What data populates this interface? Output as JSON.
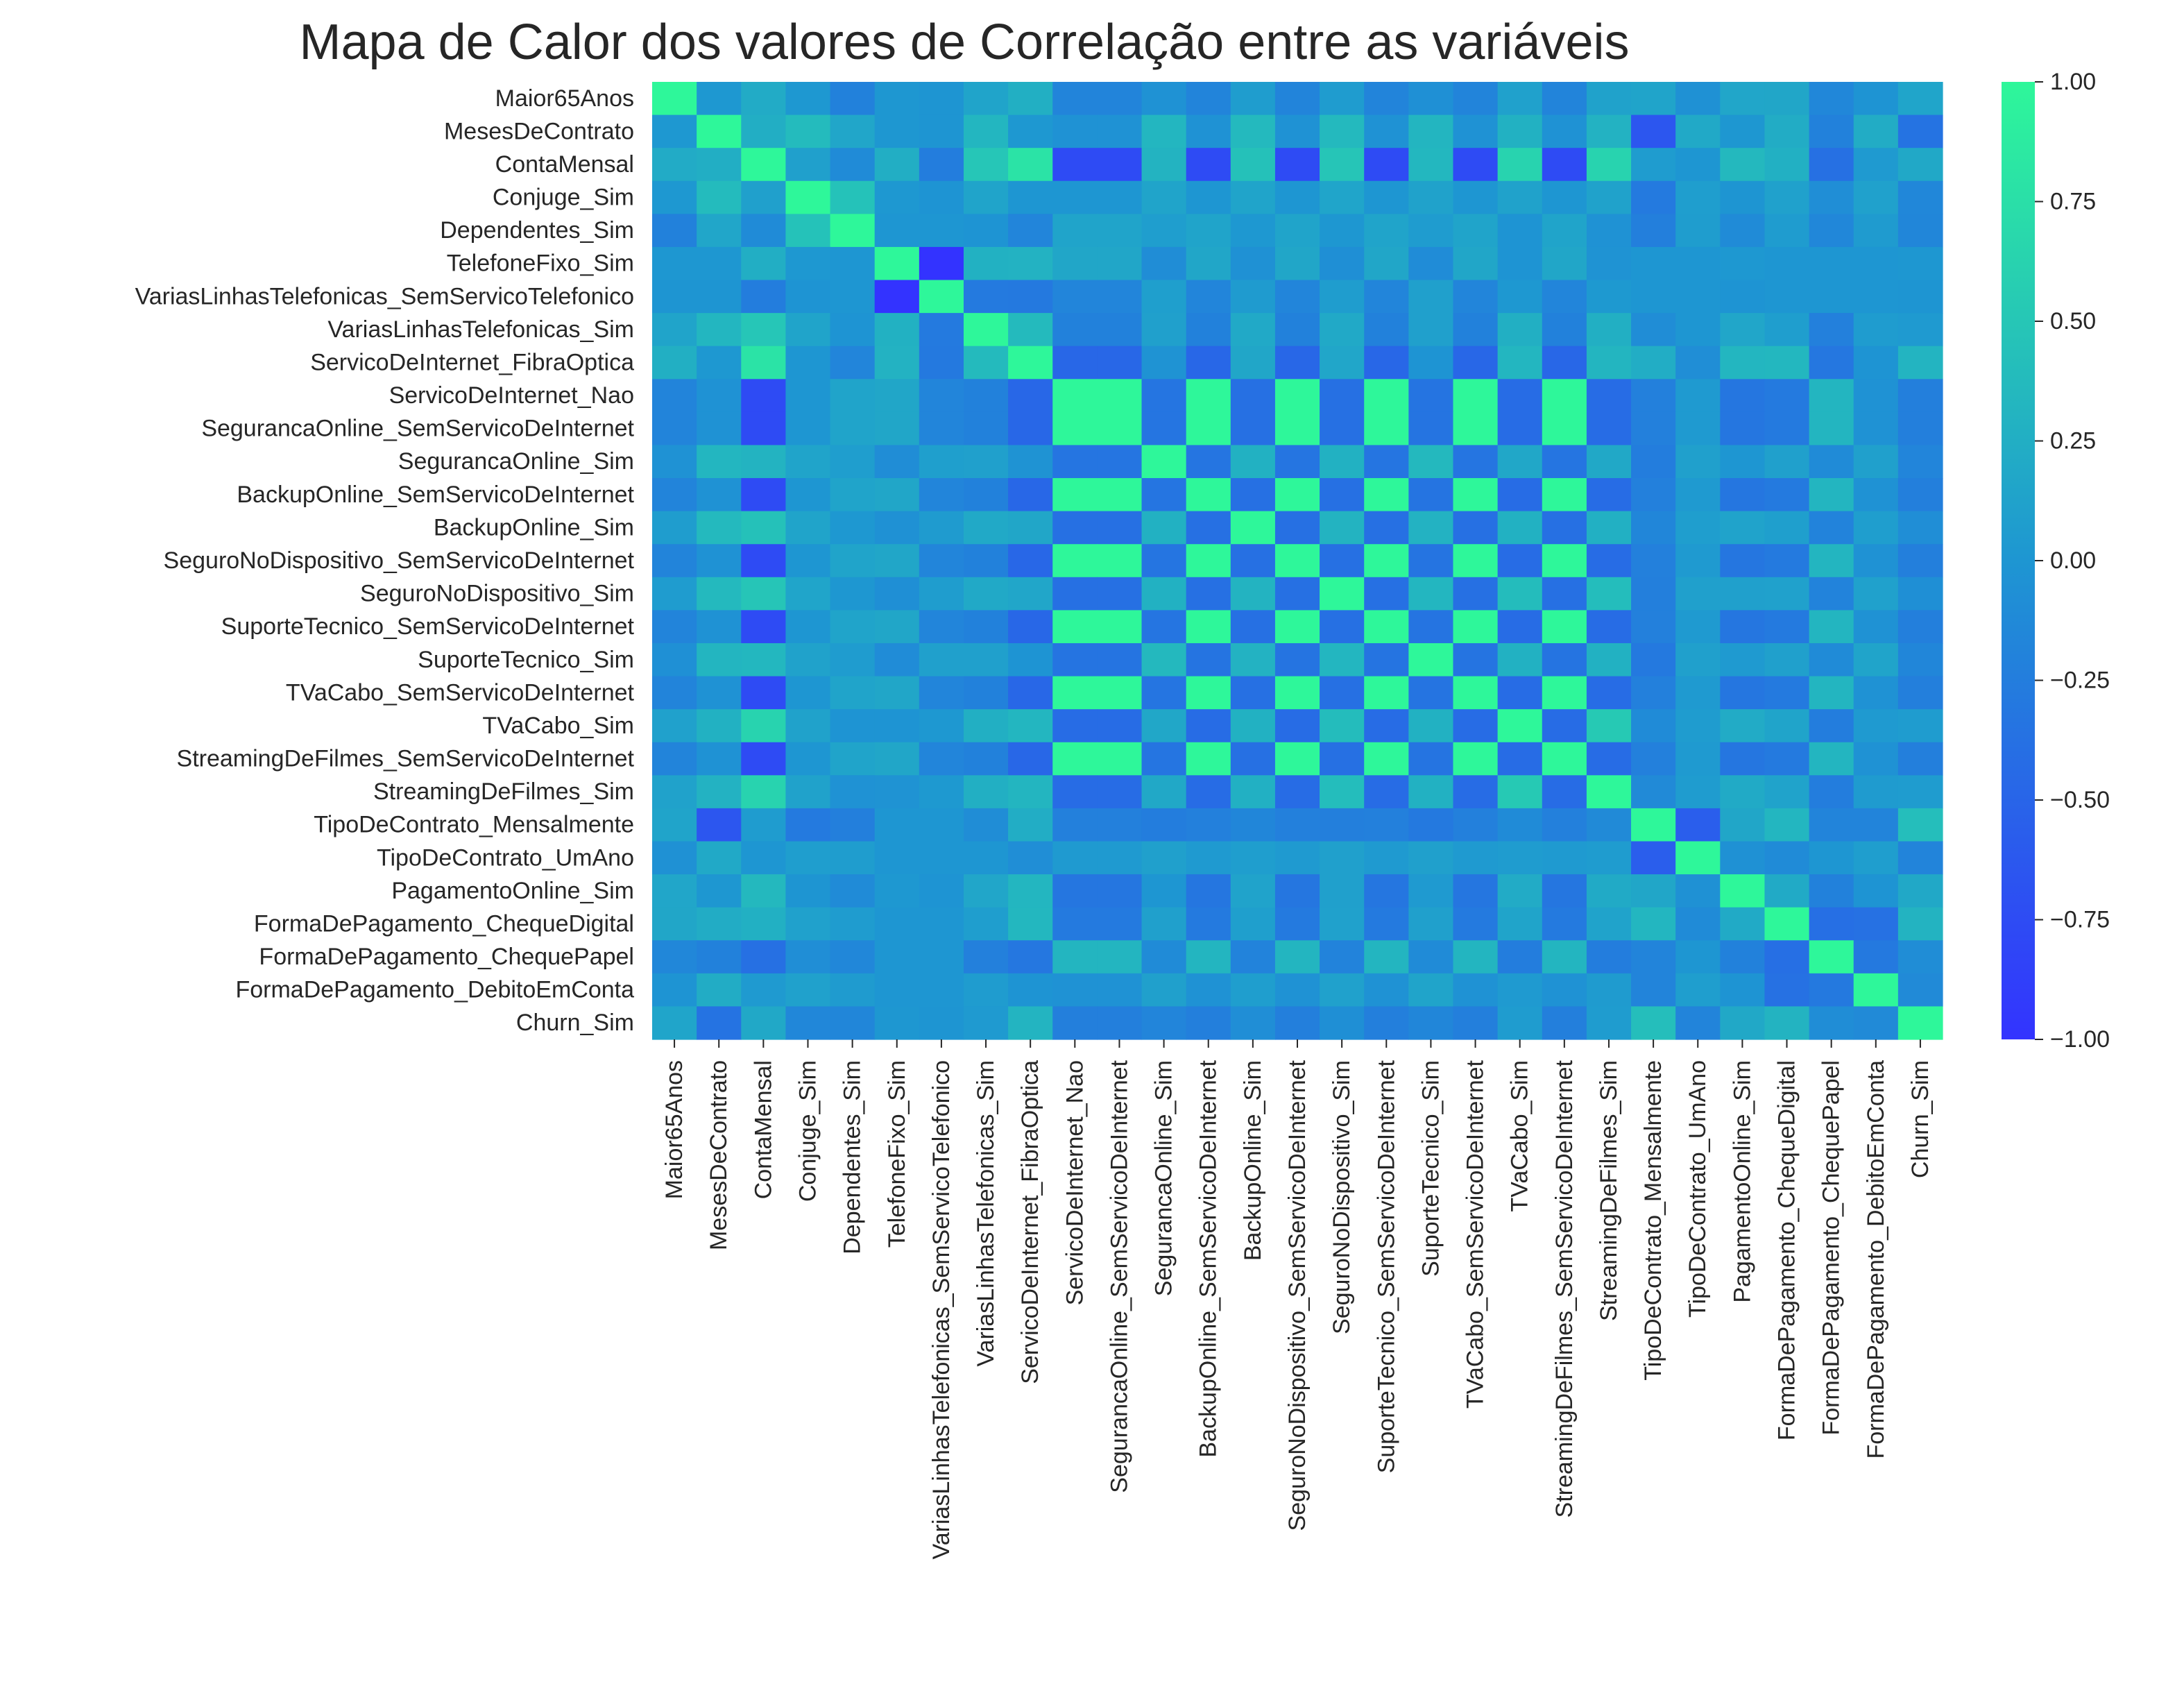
{
  "chart_data": {
    "type": "heatmap",
    "title": "Mapa de Calor dos valores de Correlação entre as variáveis",
    "xlabel": "",
    "ylabel": "",
    "labels": [
      "Maior65Anos",
      "MesesDeContrato",
      "ContaMensal",
      "Conjuge_Sim",
      "Dependentes_Sim",
      "TelefoneFixo_Sim",
      "VariasLinhasTelefonicas_SemServicoTelefonico",
      "VariasLinhasTelefonicas_Sim",
      "ServicoDeInternet_FibraOptica",
      "ServicoDeInternet_Nao",
      "SegurancaOnline_SemServicoDeInternet",
      "SegurancaOnline_Sim",
      "BackupOnline_SemServicoDeInternet",
      "BackupOnline_Sim",
      "SeguroNoDispositivo_SemServicoDeInternet",
      "SeguroNoDispositivo_Sim",
      "SuporteTecnico_SemServicoDeInternet",
      "SuporteTecnico_Sim",
      "TVaCabo_SemServicoDeInternet",
      "TVaCabo_Sim",
      "StreamingDeFilmes_SemServicoDeInternet",
      "StreamingDeFilmes_Sim",
      "TipoDeContrato_Mensalmente",
      "TipoDeContrato_UmAno",
      "PagamentoOnline_Sim",
      "FormaDePagamento_ChequeDigital",
      "FormaDePagamento_ChequePapel",
      "FormaDePagamento_DebitoEmConta",
      "Churn_Sim"
    ],
    "matrix": [
      [
        1.0,
        0.02,
        0.22,
        0.02,
        -0.21,
        0.01,
        -0.01,
        0.14,
        0.26,
        -0.18,
        -0.18,
        -0.04,
        -0.18,
        0.07,
        -0.18,
        0.06,
        -0.18,
        -0.06,
        -0.18,
        0.11,
        -0.18,
        0.12,
        0.14,
        -0.05,
        0.16,
        0.17,
        -0.15,
        -0.02,
        0.15
      ],
      [
        0.02,
        1.0,
        0.25,
        0.38,
        0.16,
        0.01,
        -0.01,
        0.33,
        0.02,
        -0.04,
        -0.04,
        0.33,
        -0.04,
        0.36,
        -0.04,
        0.36,
        -0.04,
        0.32,
        -0.04,
        0.28,
        -0.04,
        0.29,
        -0.65,
        0.2,
        0.01,
        0.23,
        -0.21,
        0.23,
        -0.35
      ],
      [
        0.22,
        0.25,
        1.0,
        0.1,
        -0.11,
        0.25,
        -0.25,
        0.49,
        0.79,
        -0.76,
        -0.76,
        0.3,
        -0.76,
        0.44,
        -0.76,
        0.48,
        -0.76,
        0.34,
        -0.76,
        0.63,
        -0.76,
        0.63,
        0.06,
        0.0,
        0.35,
        0.27,
        -0.38,
        0.04,
        0.19
      ],
      [
        0.02,
        0.38,
        0.1,
        1.0,
        0.45,
        0.02,
        -0.02,
        0.14,
        0.0,
        0.0,
        0.0,
        0.14,
        0.0,
        0.14,
        0.0,
        0.15,
        0.0,
        0.12,
        0.0,
        0.12,
        0.0,
        0.12,
        -0.28,
        0.08,
        -0.01,
        0.11,
        -0.08,
        0.11,
        -0.15
      ],
      [
        -0.21,
        0.16,
        -0.11,
        0.45,
        1.0,
        -0.0,
        0.0,
        -0.02,
        -0.17,
        0.14,
        0.14,
        0.08,
        0.14,
        0.02,
        0.14,
        0.01,
        0.14,
        0.06,
        0.14,
        -0.02,
        0.14,
        -0.04,
        -0.23,
        0.07,
        -0.11,
        0.06,
        -0.15,
        0.05,
        -0.16
      ],
      [
        0.01,
        0.01,
        0.25,
        0.02,
        -0.0,
        1.0,
        -1.0,
        0.28,
        0.29,
        0.17,
        0.17,
        -0.09,
        0.17,
        -0.05,
        0.17,
        -0.07,
        0.17,
        -0.1,
        0.17,
        -0.02,
        0.17,
        -0.03,
        0.0,
        -0.0,
        0.02,
        0.0,
        -0.0,
        0.0,
        0.01
      ],
      [
        -0.01,
        -0.01,
        -0.25,
        -0.02,
        0.0,
        -1.0,
        1.0,
        -0.28,
        -0.29,
        -0.17,
        -0.17,
        0.09,
        -0.17,
        0.05,
        -0.17,
        0.07,
        -0.17,
        0.1,
        -0.17,
        0.02,
        -0.17,
        0.03,
        -0.0,
        0.0,
        -0.02,
        -0.0,
        0.0,
        -0.0,
        -0.01
      ],
      [
        0.14,
        0.33,
        0.49,
        0.14,
        -0.02,
        0.28,
        -0.28,
        1.0,
        0.37,
        -0.21,
        -0.21,
        0.1,
        -0.21,
        0.2,
        -0.21,
        0.2,
        -0.21,
        0.1,
        -0.21,
        0.26,
        -0.21,
        0.26,
        -0.09,
        -0.0,
        0.16,
        0.08,
        -0.22,
        0.06,
        0.04
      ],
      [
        0.26,
        0.02,
        0.79,
        0.0,
        -0.17,
        0.29,
        -0.29,
        0.37,
        1.0,
        -0.47,
        -0.47,
        -0.03,
        -0.47,
        0.17,
        -0.47,
        0.16,
        -0.47,
        -0.02,
        -0.47,
        0.33,
        -0.47,
        0.32,
        0.24,
        -0.08,
        0.33,
        0.34,
        -0.31,
        -0.02,
        0.31
      ],
      [
        -0.18,
        -0.04,
        -0.76,
        0.0,
        0.14,
        0.17,
        -0.17,
        -0.21,
        -0.47,
        1.0,
        1.0,
        -0.33,
        1.0,
        -0.38,
        1.0,
        -0.38,
        1.0,
        -0.34,
        1.0,
        -0.42,
        1.0,
        -0.42,
        -0.22,
        0.04,
        -0.32,
        -0.28,
        0.32,
        -0.04,
        -0.23
      ],
      [
        -0.18,
        -0.04,
        -0.76,
        0.0,
        0.14,
        0.17,
        -0.17,
        -0.21,
        -0.47,
        1.0,
        1.0,
        -0.33,
        1.0,
        -0.38,
        1.0,
        -0.38,
        1.0,
        -0.34,
        1.0,
        -0.42,
        1.0,
        -0.42,
        -0.22,
        0.04,
        -0.32,
        -0.28,
        0.32,
        -0.04,
        -0.23
      ],
      [
        -0.04,
        0.33,
        0.3,
        0.14,
        0.08,
        -0.09,
        0.09,
        0.1,
        -0.03,
        -0.33,
        -0.33,
        1.0,
        -0.33,
        0.28,
        -0.33,
        0.28,
        -0.33,
        0.35,
        -0.33,
        0.18,
        -0.33,
        0.19,
        -0.25,
        0.1,
        -0.0,
        0.1,
        -0.11,
        0.1,
        -0.17
      ],
      [
        -0.18,
        -0.04,
        -0.76,
        0.0,
        0.14,
        0.17,
        -0.17,
        -0.21,
        -0.47,
        1.0,
        1.0,
        -0.33,
        1.0,
        -0.38,
        1.0,
        -0.38,
        1.0,
        -0.34,
        1.0,
        -0.42,
        1.0,
        -0.42,
        -0.22,
        0.04,
        -0.32,
        -0.28,
        0.32,
        -0.04,
        -0.23
      ],
      [
        0.07,
        0.36,
        0.44,
        0.14,
        0.02,
        -0.05,
        0.05,
        0.2,
        0.17,
        -0.38,
        -0.38,
        0.28,
        -0.38,
        1.0,
        -0.38,
        0.3,
        -0.38,
        0.29,
        -0.38,
        0.28,
        -0.38,
        0.27,
        -0.16,
        0.08,
        0.13,
        0.09,
        -0.19,
        0.08,
        -0.08
      ],
      [
        -0.18,
        -0.04,
        -0.76,
        0.0,
        0.14,
        0.17,
        -0.17,
        -0.21,
        -0.47,
        1.0,
        1.0,
        -0.33,
        1.0,
        -0.38,
        1.0,
        -0.38,
        1.0,
        -0.34,
        1.0,
        -0.42,
        1.0,
        -0.42,
        -0.22,
        0.04,
        -0.32,
        -0.28,
        0.32,
        -0.04,
        -0.23
      ],
      [
        0.06,
        0.36,
        0.48,
        0.15,
        0.01,
        -0.07,
        0.07,
        0.2,
        0.16,
        -0.38,
        -0.38,
        0.28,
        -0.38,
        0.3,
        -0.38,
        1.0,
        -0.38,
        0.33,
        -0.38,
        0.39,
        -0.38,
        0.4,
        -0.23,
        0.1,
        0.1,
        0.11,
        -0.19,
        0.11,
        -0.07
      ],
      [
        -0.18,
        -0.04,
        -0.76,
        0.0,
        0.14,
        0.17,
        -0.17,
        -0.21,
        -0.47,
        1.0,
        1.0,
        -0.33,
        1.0,
        -0.38,
        1.0,
        -0.38,
        1.0,
        -0.34,
        1.0,
        -0.42,
        1.0,
        -0.42,
        -0.22,
        0.04,
        -0.32,
        -0.28,
        0.32,
        -0.04,
        -0.23
      ],
      [
        -0.06,
        0.32,
        0.34,
        0.12,
        0.06,
        -0.1,
        0.1,
        0.1,
        -0.02,
        -0.34,
        -0.34,
        0.35,
        -0.34,
        0.29,
        -0.34,
        0.33,
        -0.34,
        1.0,
        -0.34,
        0.28,
        -0.34,
        0.28,
        -0.29,
        0.1,
        0.04,
        0.1,
        -0.11,
        0.14,
        -0.16
      ],
      [
        -0.18,
        -0.04,
        -0.76,
        0.0,
        0.14,
        0.17,
        -0.17,
        -0.21,
        -0.47,
        1.0,
        1.0,
        -0.33,
        1.0,
        -0.38,
        1.0,
        -0.38,
        1.0,
        -0.34,
        1.0,
        -0.42,
        1.0,
        -0.42,
        -0.22,
        0.04,
        -0.32,
        -0.28,
        0.32,
        -0.04,
        -0.23
      ],
      [
        0.11,
        0.28,
        0.63,
        0.12,
        -0.02,
        -0.02,
        0.02,
        0.26,
        0.33,
        -0.42,
        -0.42,
        0.18,
        -0.42,
        0.28,
        -0.42,
        0.39,
        -0.42,
        0.28,
        -0.42,
        1.0,
        -0.42,
        0.53,
        -0.11,
        0.06,
        0.22,
        0.14,
        -0.25,
        0.04,
        0.06
      ],
      [
        -0.18,
        -0.04,
        -0.76,
        0.0,
        0.14,
        0.17,
        -0.17,
        -0.21,
        -0.47,
        1.0,
        1.0,
        -0.33,
        1.0,
        -0.38,
        1.0,
        -0.38,
        1.0,
        -0.34,
        1.0,
        -0.42,
        1.0,
        -0.42,
        -0.22,
        0.04,
        -0.32,
        -0.28,
        0.32,
        -0.04,
        -0.23
      ],
      [
        0.12,
        0.29,
        0.63,
        0.12,
        -0.04,
        -0.03,
        0.03,
        0.26,
        0.32,
        -0.42,
        -0.42,
        0.19,
        -0.42,
        0.27,
        -0.42,
        0.4,
        -0.42,
        0.28,
        -0.42,
        0.53,
        -0.42,
        1.0,
        -0.12,
        0.06,
        0.21,
        0.13,
        -0.25,
        0.05,
        0.06
      ],
      [
        0.14,
        -0.65,
        0.06,
        -0.28,
        -0.23,
        0.0,
        -0.0,
        -0.09,
        0.24,
        -0.22,
        -0.22,
        -0.25,
        -0.22,
        -0.16,
        -0.22,
        -0.23,
        -0.22,
        -0.29,
        -0.22,
        -0.11,
        -0.22,
        -0.12,
        1.0,
        -0.57,
        0.17,
        0.33,
        -0.18,
        -0.18,
        0.41
      ],
      [
        -0.05,
        0.2,
        0.0,
        0.08,
        0.07,
        -0.0,
        0.0,
        -0.0,
        -0.08,
        0.04,
        0.04,
        0.1,
        0.04,
        0.08,
        0.04,
        0.1,
        0.04,
        0.1,
        0.04,
        0.06,
        0.04,
        0.06,
        -0.57,
        1.0,
        -0.05,
        -0.11,
        0.0,
        0.08,
        -0.18
      ],
      [
        0.16,
        0.01,
        0.35,
        -0.01,
        -0.11,
        0.02,
        -0.02,
        0.16,
        0.33,
        -0.32,
        -0.32,
        -0.0,
        -0.32,
        0.13,
        -0.32,
        0.1,
        -0.32,
        0.04,
        -0.32,
        0.22,
        -0.32,
        0.21,
        0.17,
        -0.05,
        1.0,
        0.21,
        -0.21,
        -0.02,
        0.19
      ],
      [
        0.17,
        0.23,
        0.27,
        0.11,
        0.06,
        0.0,
        -0.0,
        0.08,
        0.34,
        -0.28,
        -0.28,
        0.1,
        -0.28,
        0.09,
        -0.28,
        0.11,
        -0.28,
        0.1,
        -0.28,
        0.14,
        -0.28,
        0.13,
        0.33,
        -0.11,
        0.21,
        1.0,
        -0.39,
        -0.37,
        0.3
      ],
      [
        -0.15,
        -0.21,
        -0.38,
        -0.08,
        -0.15,
        -0.0,
        0.0,
        -0.22,
        -0.31,
        0.32,
        0.32,
        -0.11,
        0.32,
        -0.19,
        0.32,
        -0.19,
        0.32,
        -0.11,
        0.32,
        -0.25,
        0.32,
        -0.25,
        -0.18,
        0.0,
        -0.21,
        -0.39,
        1.0,
        -0.29,
        -0.09
      ],
      [
        -0.02,
        0.23,
        0.04,
        0.11,
        0.05,
        0.0,
        -0.0,
        0.06,
        -0.02,
        -0.04,
        -0.04,
        0.1,
        -0.04,
        0.08,
        -0.04,
        0.11,
        -0.04,
        0.14,
        -0.04,
        0.04,
        -0.04,
        0.05,
        -0.18,
        0.08,
        -0.02,
        -0.37,
        -0.29,
        1.0,
        -0.12
      ],
      [
        0.15,
        -0.35,
        0.19,
        -0.15,
        -0.16,
        0.01,
        -0.01,
        0.04,
        0.31,
        -0.23,
        -0.23,
        -0.17,
        -0.23,
        -0.08,
        -0.23,
        -0.07,
        -0.23,
        -0.16,
        -0.23,
        0.06,
        -0.23,
        0.06,
        0.41,
        -0.18,
        0.19,
        0.3,
        -0.09,
        -0.12,
        1.0
      ]
    ],
    "colorbar": {
      "min": -1.0,
      "max": 1.0,
      "ticks": [
        "1.00",
        "0.75",
        "0.50",
        "0.25",
        "0.00",
        "−0.25",
        "−0.50",
        "−0.75",
        "−1.00"
      ],
      "tick_values": [
        1.0,
        0.75,
        0.5,
        0.25,
        0.0,
        -0.25,
        -0.5,
        -0.75,
        -1.0
      ],
      "color_low": "#3333ff",
      "color_mid": "#1e96d2",
      "color_high": "#2ef79a"
    },
    "grid": false,
    "legend": "colorbar-right"
  }
}
